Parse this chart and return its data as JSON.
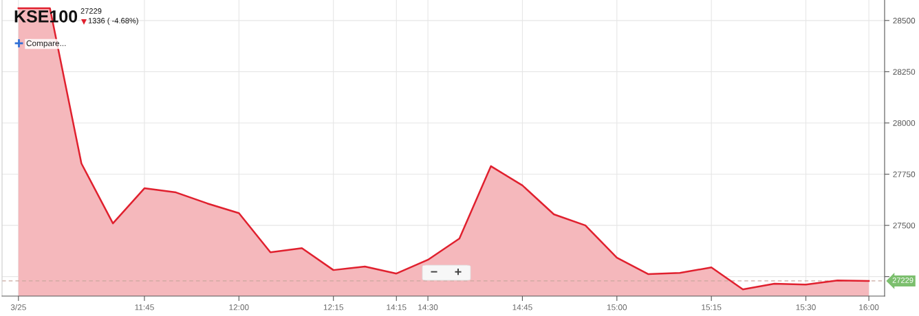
{
  "chart_data": {
    "type": "area",
    "title": "KSE100",
    "subtitle": "27229",
    "annotations": [
      "1336 ( -4.68%)",
      "Compare...",
      "−",
      "+"
    ],
    "categories": [
      "3/25",
      null,
      null,
      null,
      "11:45",
      null,
      null,
      "12:00",
      null,
      null,
      "12:15",
      null,
      "14:15",
      "14:30",
      null,
      null,
      "14:45",
      null,
      null,
      "15:00",
      null,
      null,
      "15:15",
      null,
      null,
      "15:30",
      null,
      "16:00"
    ],
    "series": [
      {
        "color": "#e0202e",
        "values": [
          28560,
          28560,
          27802,
          27510,
          27681,
          27661,
          27607,
          27560,
          27369,
          27389,
          27282,
          27299,
          27265,
          27332,
          27436,
          27789,
          27695,
          27554,
          27500,
          27342,
          27262,
          27268,
          27295,
          27188,
          27215,
          27211,
          27231,
          27229
        ]
      }
    ],
    "ylim": [
      27155,
      28600
    ],
    "yticks": [
      {
        "value": 27250,
        "label": null
      },
      27500,
      27750,
      28000,
      28250,
      28500
    ],
    "ref_lines": [
      {
        "axis": "y",
        "value": 27229,
        "label": "27229",
        "color": "#c9a79d",
        "line_style": "dashed"
      }
    ],
    "grid": true
  }
}
